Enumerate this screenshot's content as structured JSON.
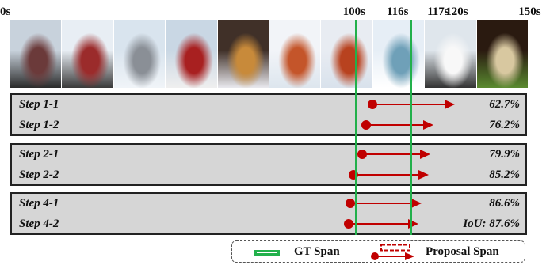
{
  "timeline": {
    "ticks": [
      {
        "label": "0s",
        "x": 0
      },
      {
        "label": "100s",
        "x": 100
      },
      {
        "label": "116s",
        "x": 116
      },
      {
        "label": "117s",
        "x": 117
      },
      {
        "label": "120s",
        "x": 120
      },
      {
        "label": "150s",
        "x": 150
      }
    ],
    "gt_span": {
      "start": 100,
      "end": 116
    }
  },
  "video_frames": [
    {
      "name": "frame-person-snow",
      "colors": [
        "#c8d2dc",
        "#6b3a3a",
        "#2a2a2a"
      ]
    },
    {
      "name": "frame-person-jacket",
      "colors": [
        "#e8eef4",
        "#9b2b2b",
        "#3a3a3a"
      ]
    },
    {
      "name": "frame-forest-sled",
      "colors": [
        "#d9e4ee",
        "#8a8f96",
        "#f0f4f8"
      ]
    },
    {
      "name": "frame-dog-sled-red",
      "colors": [
        "#c9d7e4",
        "#a82020",
        "#efefef"
      ]
    },
    {
      "name": "frame-dogs-running",
      "colors": [
        "#403028",
        "#c88a3a",
        "#e9e9ee"
      ]
    },
    {
      "name": "frame-husky-close",
      "colors": [
        "#f2f4f8",
        "#c4552a",
        "#dde6ee"
      ]
    },
    {
      "name": "frame-husky-red",
      "colors": [
        "#e8ecf2",
        "#b8421f",
        "#d9e2ec"
      ]
    },
    {
      "name": "frame-snow-river",
      "colors": [
        "#e6eef6",
        "#6fa0b8",
        "#ffffff"
      ]
    },
    {
      "name": "frame-white-car",
      "colors": [
        "#dfe6ec",
        "#f8f8f8",
        "#333333"
      ]
    },
    {
      "name": "frame-food-plate",
      "colors": [
        "#2a1a10",
        "#d8c8a0",
        "#5a8a30"
      ]
    }
  ],
  "groups": [
    {
      "rows": [
        {
          "label": "Step 1-1",
          "start": 105,
          "end": 128,
          "iou": "62.7%"
        },
        {
          "label": "Step 1-2",
          "start": 103,
          "end": 122,
          "iou": "76.2%"
        }
      ]
    },
    {
      "rows": [
        {
          "label": "Step 2-1",
          "start": 102,
          "end": 121,
          "iou": "79.9%"
        },
        {
          "label": "Step 2-2",
          "start": 99.5,
          "end": 120.5,
          "iou": "85.2%"
        }
      ]
    },
    {
      "rows": [
        {
          "label": "Step 4-1",
          "start": 98.5,
          "end": 118.5,
          "iou": "86.6%"
        },
        {
          "label": "Step 4-2",
          "start": 98,
          "end": 117.5,
          "iou": "IoU: 87.6%"
        }
      ]
    }
  ],
  "legend": {
    "gt_label": "GT Span",
    "proposal_label": "Proposal Span"
  },
  "colors": {
    "gt": "#22b04b",
    "proposal": "#c00000"
  }
}
